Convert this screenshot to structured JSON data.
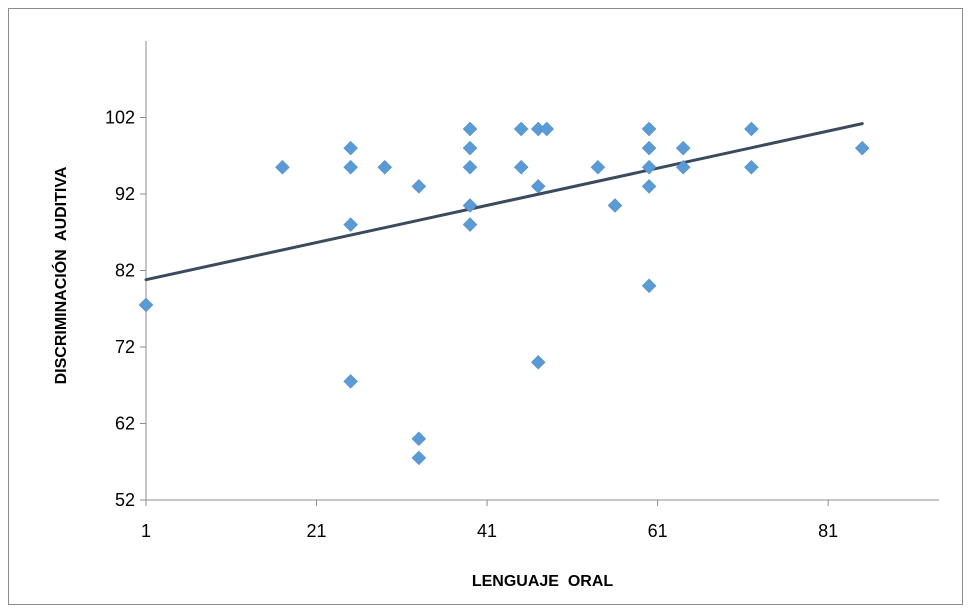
{
  "chart_data": {
    "type": "scatter",
    "title": "",
    "xlabel": "LENGUAJE  ORAL",
    "ylabel": "DISCRIMINACIÓN  AUDITIVA",
    "xlim": [
      1,
      94
    ],
    "ylim": [
      52,
      112
    ],
    "x_ticks": [
      "1",
      "21",
      "41",
      "61",
      "81"
    ],
    "y_ticks": [
      "52",
      "62",
      "72",
      "82",
      "92",
      "102"
    ],
    "grid": false,
    "legend": "none",
    "marker_color": "#5b9bd5",
    "trendline_color": "#3b4b5e",
    "series": [
      {
        "points": [
          {
            "x": 1,
            "y": 77.5
          },
          {
            "x": 17,
            "y": 95.5
          },
          {
            "x": 25,
            "y": 98
          },
          {
            "x": 25,
            "y": 95.5
          },
          {
            "x": 25,
            "y": 88
          },
          {
            "x": 25,
            "y": 67.5
          },
          {
            "x": 29,
            "y": 95.5
          },
          {
            "x": 33,
            "y": 93
          },
          {
            "x": 33,
            "y": 60
          },
          {
            "x": 33,
            "y": 57.5
          },
          {
            "x": 39,
            "y": 100.5
          },
          {
            "x": 39,
            "y": 98
          },
          {
            "x": 39,
            "y": 95.5
          },
          {
            "x": 39,
            "y": 90.5
          },
          {
            "x": 39,
            "y": 88
          },
          {
            "x": 45,
            "y": 100.5
          },
          {
            "x": 45,
            "y": 95.5
          },
          {
            "x": 47,
            "y": 100.5
          },
          {
            "x": 47,
            "y": 93
          },
          {
            "x": 47,
            "y": 70
          },
          {
            "x": 48,
            "y": 100.5
          },
          {
            "x": 54,
            "y": 95.5
          },
          {
            "x": 56,
            "y": 90.5
          },
          {
            "x": 60,
            "y": 100.5
          },
          {
            "x": 60,
            "y": 98
          },
          {
            "x": 60,
            "y": 95.5
          },
          {
            "x": 60,
            "y": 93
          },
          {
            "x": 60,
            "y": 80
          },
          {
            "x": 64,
            "y": 98
          },
          {
            "x": 64,
            "y": 95.5
          },
          {
            "x": 72,
            "y": 100.5
          },
          {
            "x": 72,
            "y": 95.5
          },
          {
            "x": 85,
            "y": 98
          }
        ]
      }
    ],
    "trendline": {
      "type": "linear",
      "x": [
        1,
        85
      ],
      "y": [
        80.8,
        101.2
      ]
    }
  }
}
